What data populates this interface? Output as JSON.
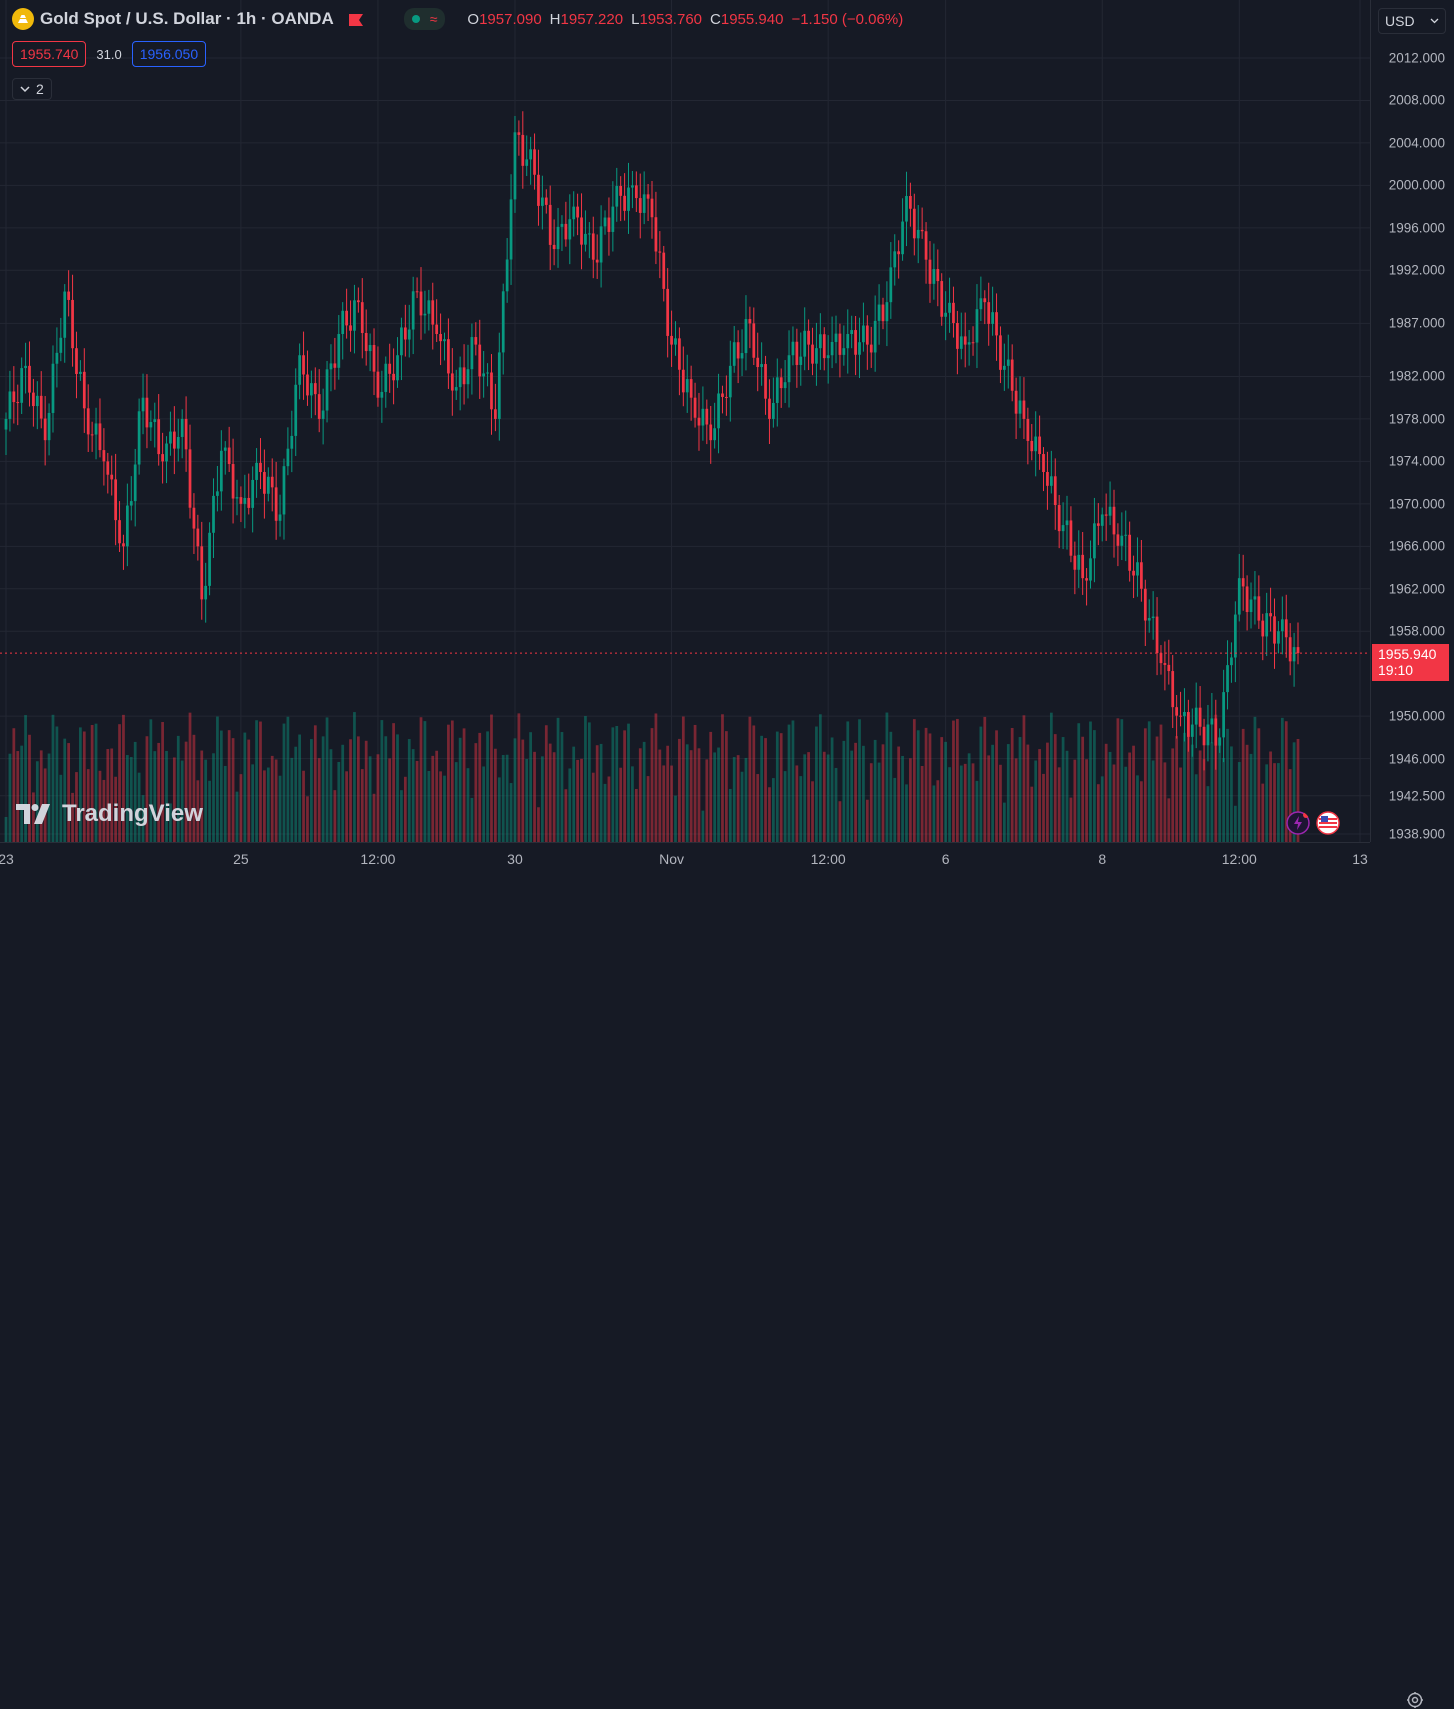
{
  "header": {
    "symbol_title": "Gold Spot / U.S. Dollar · 1h · OANDA",
    "ohlc": [
      {
        "key": "O",
        "value": "1957.090"
      },
      {
        "key": "H",
        "value": "1957.220"
      },
      {
        "key": "L",
        "value": "1953.760"
      },
      {
        "key": "C",
        "value": "1955.940"
      },
      {
        "key": "",
        "value": "−1.150 (−0.06%)"
      }
    ],
    "sell_price": "1955.740",
    "spread": "31.0",
    "buy_price": "1956.050",
    "indicators_count": "2",
    "colors": {
      "up": "#089981",
      "down": "#f23645",
      "bg": "#161a25",
      "grid": "#232733"
    }
  },
  "branding": {
    "logo_text": "TradingView"
  },
  "price_scale": {
    "currency": "USD",
    "labels": [
      "2012.000",
      "2008.000",
      "2004.000",
      "2000.000",
      "1996.000",
      "1992.000",
      "1987.000",
      "1982.000",
      "1978.000",
      "1974.000",
      "1970.000",
      "1966.000",
      "1962.000",
      "1958.000",
      "1950.000",
      "1946.000",
      "1942.500",
      "1938.900"
    ],
    "last_price": "1955.940",
    "countdown": "19:10"
  },
  "time_scale": {
    "labels": [
      "23",
      "25",
      "12:00",
      "30",
      "Nov",
      "12:00",
      "6",
      "8",
      "12:00",
      "13"
    ]
  },
  "chart_data": {
    "type": "candlestick",
    "title": "Gold Spot / U.S. Dollar · 1h · OANDA",
    "y_range": [
      1938.9,
      2012.0
    ],
    "last_price": 1955.94,
    "timeframe": "1h",
    "anchors": [
      {
        "label": "23",
        "close": 1978
      },
      {
        "close": 1983
      },
      {
        "close": 1976
      },
      {
        "close": 1990
      },
      {
        "close": 1979
      },
      {
        "close": 1974
      },
      {
        "close": 1966
      },
      {
        "close": 1980
      },
      {
        "close": 1974
      },
      {
        "close": 1978
      },
      {
        "close": 1961
      },
      {
        "close": 1975
      },
      {
        "label": "25",
        "close": 1970
      },
      {
        "close": 1973
      },
      {
        "close": 1969
      },
      {
        "close": 1984
      },
      {
        "close": 1978
      },
      {
        "close": 1986
      },
      {
        "close": 1989
      },
      {
        "label": "12:00",
        "close": 1980
      },
      {
        "close": 1984
      },
      {
        "close": 1990
      },
      {
        "close": 1986
      },
      {
        "close": 1981
      },
      {
        "close": 1985
      },
      {
        "close": 1978
      },
      {
        "label": "30",
        "close": 2005
      },
      {
        "close": 2001
      },
      {
        "close": 1994
      },
      {
        "close": 1998
      },
      {
        "close": 1993
      },
      {
        "close": 1998
      },
      {
        "close": 2000
      },
      {
        "close": 1997
      },
      {
        "label": "Nov",
        "close": 1985
      },
      {
        "close": 1980
      },
      {
        "close": 1976
      },
      {
        "close": 1983
      },
      {
        "close": 1987
      },
      {
        "close": 1978
      },
      {
        "close": 1984
      },
      {
        "close": 1985
      },
      {
        "label": "12:00",
        "close": 1984
      },
      {
        "close": 1986
      },
      {
        "close": 1985
      },
      {
        "close": 1989
      },
      {
        "close": 1999
      },
      {
        "close": 1993
      },
      {
        "label": "6",
        "close": 1988
      },
      {
        "close": 1985
      },
      {
        "close": 1989
      },
      {
        "close": 1983
      },
      {
        "close": 1978
      },
      {
        "close": 1973
      },
      {
        "close": 1968
      },
      {
        "close": 1963
      },
      {
        "label": "8",
        "close": 1969
      },
      {
        "close": 1967
      },
      {
        "close": 1962
      },
      {
        "close": 1955
      },
      {
        "close": 1950
      },
      {
        "close": 1949
      },
      {
        "close": 1948
      },
      {
        "label": "12:00",
        "close": 1963
      },
      {
        "close": 1959
      },
      {
        "close": 1958
      },
      {
        "close": 1955.94
      }
    ]
  }
}
